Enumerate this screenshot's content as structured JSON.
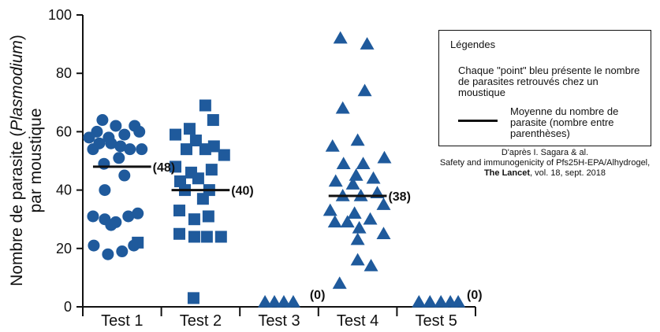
{
  "chart_data": {
    "type": "scatter",
    "ylabel_prefix": "Nombre de parasite (",
    "ylabel_italic": "Plasmodium",
    "ylabel_suffix": ")",
    "ylabel_line2": "par moustique",
    "ylim": [
      0,
      100
    ],
    "yticks": [
      "0",
      "20",
      "40",
      "60",
      "80",
      "100"
    ],
    "categories": [
      "Test 1",
      "Test 2",
      "Test 3",
      "Test 4",
      "Test 5"
    ],
    "marker_color": "#1f5a9c",
    "series": [
      {
        "name": "Test 1",
        "marker": "circle",
        "mean": 48,
        "mean_label": "(48)",
        "points": [
          [
            -0.25,
            64
          ],
          [
            -0.08,
            62
          ],
          [
            0.03,
            59
          ],
          [
            0.16,
            62
          ],
          [
            0.22,
            60
          ],
          [
            -0.32,
            60
          ],
          [
            -0.17,
            58
          ],
          [
            -0.42,
            58
          ],
          [
            -0.29,
            56
          ],
          [
            -0.14,
            56
          ],
          [
            -0.02,
            55
          ],
          [
            0.1,
            54
          ],
          [
            0.25,
            54
          ],
          [
            -0.37,
            54
          ],
          [
            -0.04,
            51
          ],
          [
            -0.23,
            49
          ],
          [
            0.03,
            45
          ],
          [
            -0.22,
            40
          ],
          [
            -0.37,
            31
          ],
          [
            -0.22,
            30
          ],
          [
            -0.08,
            29
          ],
          [
            0.08,
            31
          ],
          [
            0.2,
            32
          ],
          [
            -0.14,
            28
          ],
          [
            -0.36,
            21
          ],
          [
            -0.18,
            18
          ],
          [
            0.0,
            19
          ],
          [
            0.15,
            21
          ]
        ],
        "squares": [
          [
            0.2,
            22
          ]
        ]
      },
      {
        "name": "Test 2",
        "marker": "square",
        "mean": 40,
        "mean_label": "(40)",
        "points": [
          [
            0.06,
            69
          ],
          [
            -0.14,
            61
          ],
          [
            0.16,
            64
          ],
          [
            -0.32,
            59
          ],
          [
            -0.06,
            57
          ],
          [
            0.17,
            55
          ],
          [
            -0.18,
            54
          ],
          [
            0.06,
            54
          ],
          [
            0.3,
            52
          ],
          [
            -0.32,
            48
          ],
          [
            -0.12,
            46
          ],
          [
            0.14,
            47
          ],
          [
            -0.26,
            43
          ],
          [
            -0.03,
            44
          ],
          [
            0.11,
            40
          ],
          [
            -0.2,
            40
          ],
          [
            0.03,
            37
          ],
          [
            -0.27,
            33
          ],
          [
            0.1,
            31
          ],
          [
            -0.08,
            30
          ],
          [
            -0.27,
            25
          ],
          [
            -0.08,
            24
          ],
          [
            0.08,
            24
          ],
          [
            0.26,
            24
          ],
          [
            -0.09,
            3
          ]
        ]
      },
      {
        "name": "Test 3",
        "marker": "triangle",
        "mean": 0,
        "mean_label": "(0)",
        "points": [
          [
            -0.18,
            0.4
          ],
          [
            -0.06,
            0.4
          ],
          [
            0.06,
            0.4
          ],
          [
            0.18,
            0.4
          ]
        ]
      },
      {
        "name": "Test 4",
        "marker": "triangle",
        "mean": 38,
        "mean_label": "(38)",
        "points": [
          [
            -0.22,
            92
          ],
          [
            0.12,
            90
          ],
          [
            0.09,
            74
          ],
          [
            -0.19,
            68
          ],
          [
            -0.32,
            55
          ],
          [
            0.0,
            57
          ],
          [
            -0.18,
            49
          ],
          [
            0.07,
            49
          ],
          [
            0.34,
            51
          ],
          [
            -0.02,
            45
          ],
          [
            0.2,
            44
          ],
          [
            -0.28,
            43
          ],
          [
            -0.06,
            42
          ],
          [
            -0.19,
            38
          ],
          [
            0.04,
            38
          ],
          [
            0.25,
            39
          ],
          [
            -0.35,
            33
          ],
          [
            -0.04,
            32
          ],
          [
            0.33,
            35
          ],
          [
            0.16,
            30
          ],
          [
            -0.29,
            29
          ],
          [
            -0.13,
            29
          ],
          [
            0.02,
            27
          ],
          [
            0.33,
            25
          ],
          [
            0.0,
            23
          ],
          [
            0.0,
            16
          ],
          [
            0.17,
            14
          ],
          [
            -0.23,
            8
          ]
        ]
      },
      {
        "name": "Test 5",
        "marker": "triangle",
        "mean": 0,
        "mean_label": "(0)",
        "points": [
          [
            -0.22,
            1.5
          ],
          [
            -0.08,
            0.4
          ],
          [
            0.06,
            0.4
          ],
          [
            0.18,
            0.4
          ],
          [
            0.28,
            0.4
          ]
        ]
      }
    ],
    "legend": {
      "title": "Légendes",
      "point_text": "Chaque \"point\" bleu présente le nombre de parasites retrouvés chez un moustique",
      "line_text": "Moyenne du nombre de parasite (nombre entre parenthèses)"
    },
    "source": {
      "line1": "D'après I. Sagara & al.",
      "line2": "Safety and immunogenicity of Pfs25H-EPA/Alhydrogel,",
      "line3_bold": "The Lancet",
      "line3_rest": ", vol. 18, sept. 2018"
    }
  }
}
